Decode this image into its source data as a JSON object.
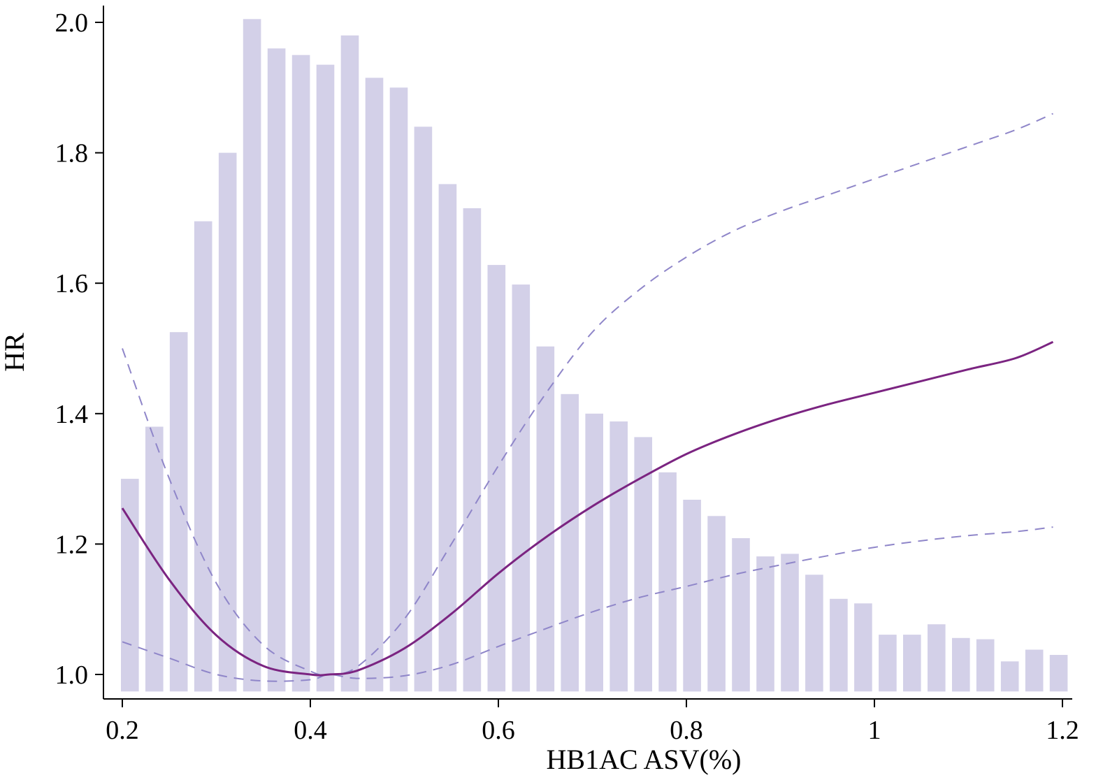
{
  "chart_data": {
    "type": "bar+line",
    "xlabel": "HB1AC ASV(%)",
    "ylabel": "HR",
    "xlim": [
      0.15,
      1.22
    ],
    "ylim": [
      0.97,
      2.05
    ],
    "grid": false,
    "x_ticks": [
      {
        "value": 0.2,
        "label": "0.2"
      },
      {
        "value": 0.4,
        "label": "0.4"
      },
      {
        "value": 0.6,
        "label": "0.6"
      },
      {
        "value": 0.8,
        "label": "0.8"
      },
      {
        "value": 1.0,
        "label": "1"
      },
      {
        "value": 1.2,
        "label": "1.2"
      }
    ],
    "y_ticks": [
      {
        "value": 1.0,
        "label": "1.0"
      },
      {
        "value": 1.2,
        "label": "1.2"
      },
      {
        "value": 1.4,
        "label": "1.4"
      },
      {
        "value": 1.6,
        "label": "1.6"
      },
      {
        "value": 1.8,
        "label": "1.8"
      },
      {
        "value": 2.0,
        "label": "2.0"
      }
    ],
    "histogram": {
      "color": "#d3d0e8",
      "bar_width": 0.019,
      "baseline": 0.975,
      "x": [
        0.208,
        0.234,
        0.26,
        0.286,
        0.312,
        0.338,
        0.364,
        0.39,
        0.416,
        0.442,
        0.468,
        0.494,
        0.52,
        0.546,
        0.572,
        0.598,
        0.624,
        0.65,
        0.676,
        0.702,
        0.728,
        0.754,
        0.78,
        0.806,
        0.832,
        0.858,
        0.884,
        0.91,
        0.936,
        0.962,
        0.988,
        1.014,
        1.04,
        1.066,
        1.092,
        1.118,
        1.144,
        1.17,
        1.196
      ],
      "top": [
        1.3,
        1.38,
        1.525,
        1.695,
        1.8,
        2.005,
        1.96,
        1.95,
        1.935,
        1.98,
        1.915,
        1.9,
        1.84,
        1.752,
        1.715,
        1.628,
        1.598,
        1.503,
        1.43,
        1.4,
        1.388,
        1.364,
        1.31,
        1.268,
        1.243,
        1.209,
        1.181,
        1.185,
        1.153,
        1.116,
        1.109,
        1.061,
        1.061,
        1.077,
        1.056,
        1.054,
        1.02,
        1.038,
        1.03
      ]
    },
    "series": [
      {
        "role": "estimate",
        "style": "solid",
        "color": "#7b2481",
        "x": [
          0.2,
          0.25,
          0.3,
          0.35,
          0.4,
          0.42,
          0.45,
          0.5,
          0.55,
          0.6,
          0.65,
          0.7,
          0.75,
          0.8,
          0.85,
          0.9,
          0.95,
          1.0,
          1.05,
          1.1,
          1.15,
          1.19
        ],
        "y": [
          1.255,
          1.145,
          1.06,
          1.013,
          1.0,
          1.0,
          1.006,
          1.04,
          1.093,
          1.155,
          1.21,
          1.258,
          1.3,
          1.338,
          1.368,
          1.393,
          1.414,
          1.432,
          1.45,
          1.468,
          1.485,
          1.51
        ]
      },
      {
        "role": "upper-ci",
        "style": "dashed",
        "color": "#8f86c9",
        "x": [
          0.2,
          0.25,
          0.3,
          0.35,
          0.4,
          0.42,
          0.45,
          0.5,
          0.55,
          0.6,
          0.65,
          0.7,
          0.75,
          0.8,
          0.85,
          0.9,
          0.95,
          1.0,
          1.05,
          1.1,
          1.15,
          1.19
        ],
        "y": [
          1.5,
          1.3,
          1.14,
          1.045,
          1.005,
          1.0,
          1.012,
          1.085,
          1.2,
          1.32,
          1.43,
          1.525,
          1.59,
          1.64,
          1.68,
          1.71,
          1.735,
          1.76,
          1.785,
          1.81,
          1.835,
          1.86
        ]
      },
      {
        "role": "lower-ci",
        "style": "dashed",
        "color": "#8f86c9",
        "x": [
          0.2,
          0.25,
          0.3,
          0.35,
          0.4,
          0.42,
          0.45,
          0.5,
          0.55,
          0.6,
          0.65,
          0.7,
          0.75,
          0.8,
          0.85,
          0.9,
          0.95,
          1.0,
          1.05,
          1.1,
          1.15,
          1.19
        ],
        "y": [
          1.05,
          1.025,
          1.0,
          0.99,
          0.992,
          1.0,
          0.994,
          0.998,
          1.015,
          1.043,
          1.07,
          1.096,
          1.118,
          1.135,
          1.153,
          1.168,
          1.182,
          1.195,
          1.205,
          1.213,
          1.219,
          1.226
        ]
      }
    ]
  }
}
